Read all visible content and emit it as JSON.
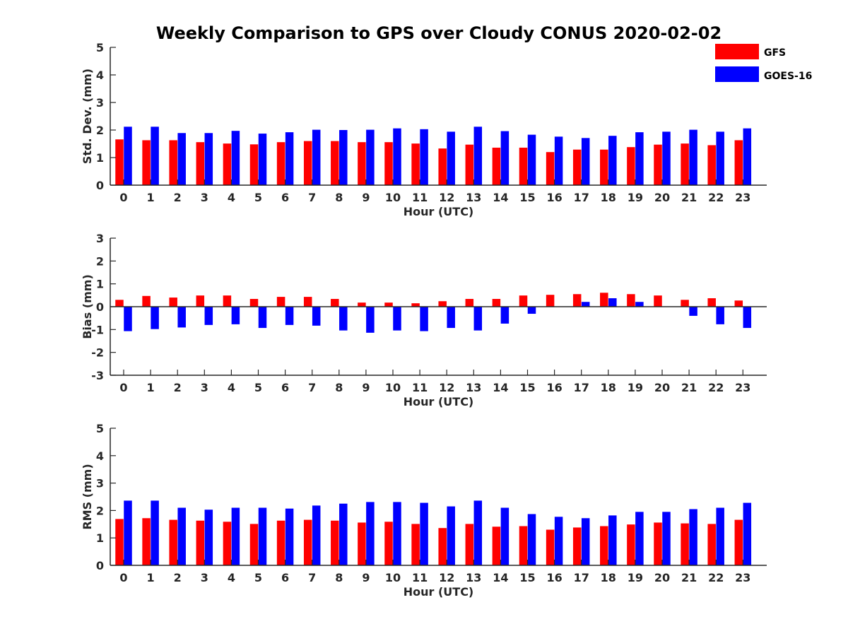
{
  "title": "Weekly Comparison to GPS over Cloudy CONUS 2020-02-02",
  "legend": {
    "placement": "top-right",
    "items": [
      {
        "label": "GFS",
        "color": "#ff0000"
      },
      {
        "label": "GOES-16",
        "color": "#0000ff"
      }
    ]
  },
  "chart_data": [
    {
      "type": "bar",
      "xlabel": "Hour (UTC)",
      "ylabel": "Std. Dev. (mm)",
      "ylim": [
        0,
        5
      ],
      "yticks": [
        0,
        1,
        2,
        3,
        4,
        5
      ],
      "categories": [
        "0",
        "1",
        "2",
        "3",
        "4",
        "5",
        "6",
        "7",
        "8",
        "9",
        "10",
        "11",
        "12",
        "13",
        "14",
        "15",
        "16",
        "17",
        "18",
        "19",
        "20",
        "21",
        "22",
        "23"
      ],
      "series": [
        {
          "name": "GFS",
          "color": "#ff0000",
          "values": [
            1.66,
            1.63,
            1.63,
            1.56,
            1.51,
            1.48,
            1.56,
            1.6,
            1.6,
            1.56,
            1.56,
            1.51,
            1.33,
            1.47,
            1.36,
            1.36,
            1.2,
            1.29,
            1.29,
            1.38,
            1.47,
            1.51,
            1.45,
            1.63
          ]
        },
        {
          "name": "GOES-16",
          "color": "#0000ff",
          "values": [
            2.12,
            2.12,
            1.89,
            1.89,
            1.97,
            1.87,
            1.92,
            2.01,
            2.0,
            2.01,
            2.06,
            2.03,
            1.94,
            2.12,
            1.96,
            1.83,
            1.76,
            1.71,
            1.79,
            1.92,
            1.94,
            2.01,
            1.94,
            2.06
          ]
        }
      ]
    },
    {
      "type": "bar",
      "xlabel": "Hour (UTC)",
      "ylabel": "Bias (mm)",
      "ylim": [
        -3,
        3
      ],
      "yticks": [
        -3,
        -2,
        -1,
        0,
        1,
        2,
        3
      ],
      "zero_line": true,
      "categories": [
        "0",
        "1",
        "2",
        "3",
        "4",
        "5",
        "6",
        "7",
        "8",
        "9",
        "10",
        "11",
        "12",
        "13",
        "14",
        "15",
        "16",
        "17",
        "18",
        "19",
        "20",
        "21",
        "22",
        "23"
      ],
      "series": [
        {
          "name": "GFS",
          "color": "#ff0000",
          "values": [
            0.3,
            0.47,
            0.4,
            0.49,
            0.49,
            0.34,
            0.43,
            0.43,
            0.34,
            0.18,
            0.18,
            0.15,
            0.24,
            0.34,
            0.34,
            0.49,
            0.52,
            0.55,
            0.61,
            0.55,
            0.49,
            0.3,
            0.37,
            0.27
          ]
        },
        {
          "name": "GOES-16",
          "color": "#0000ff",
          "values": [
            -1.07,
            -0.98,
            -0.91,
            -0.8,
            -0.77,
            -0.93,
            -0.8,
            -0.83,
            -1.04,
            -1.14,
            -1.04,
            -1.07,
            -0.93,
            -1.04,
            -0.74,
            -0.31,
            0.0,
            0.21,
            0.37,
            0.21,
            0.0,
            -0.4,
            -0.77,
            -0.93
          ]
        }
      ]
    },
    {
      "type": "bar",
      "xlabel": "Hour (UTC)",
      "ylabel": "RMS (mm)",
      "ylim": [
        0,
        5
      ],
      "yticks": [
        0,
        1,
        2,
        3,
        4,
        5
      ],
      "categories": [
        "0",
        "1",
        "2",
        "3",
        "4",
        "5",
        "6",
        "7",
        "8",
        "9",
        "10",
        "11",
        "12",
        "13",
        "14",
        "15",
        "16",
        "17",
        "18",
        "19",
        "20",
        "21",
        "22",
        "23"
      ],
      "series": [
        {
          "name": "GFS",
          "color": "#ff0000",
          "values": [
            1.69,
            1.72,
            1.66,
            1.63,
            1.59,
            1.51,
            1.63,
            1.66,
            1.63,
            1.56,
            1.59,
            1.51,
            1.36,
            1.51,
            1.41,
            1.43,
            1.3,
            1.38,
            1.43,
            1.49,
            1.56,
            1.53,
            1.51,
            1.66
          ]
        },
        {
          "name": "GOES-16",
          "color": "#0000ff",
          "values": [
            2.36,
            2.36,
            2.1,
            2.03,
            2.1,
            2.1,
            2.07,
            2.18,
            2.25,
            2.31,
            2.31,
            2.28,
            2.15,
            2.36,
            2.1,
            1.87,
            1.77,
            1.72,
            1.82,
            1.95,
            1.95,
            2.05,
            2.1,
            2.28
          ]
        }
      ]
    }
  ]
}
